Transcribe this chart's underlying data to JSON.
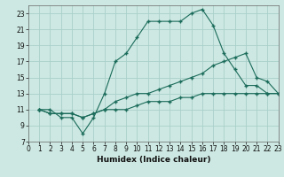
{
  "xlabel": "Humidex (Indice chaleur)",
  "bg_color": "#cde8e2",
  "grid_color": "#aacfca",
  "line_color": "#1a6b5a",
  "line1_x": [
    1,
    2,
    3,
    4,
    5,
    6,
    7,
    8,
    9,
    10,
    11,
    12,
    13,
    14,
    15,
    16,
    17,
    18,
    19,
    20,
    21,
    22,
    23
  ],
  "line1_y": [
    11,
    11,
    10,
    10,
    8,
    10,
    13,
    17,
    18,
    20,
    22,
    22,
    22,
    22,
    23,
    23.5,
    21.5,
    18,
    16,
    14,
    14,
    13,
    13
  ],
  "line2_x": [
    1,
    2,
    3,
    4,
    5,
    6,
    7,
    8,
    9,
    10,
    11,
    12,
    13,
    14,
    15,
    16,
    17,
    18,
    19,
    20,
    21,
    22,
    23
  ],
  "line2_y": [
    11,
    10.5,
    10.5,
    10.5,
    10,
    10.5,
    11,
    12,
    12.5,
    13,
    13,
    13.5,
    14,
    14.5,
    15,
    15.5,
    16.5,
    17,
    17.5,
    18,
    15,
    14.5,
    13
  ],
  "line3_x": [
    1,
    2,
    3,
    4,
    5,
    6,
    7,
    8,
    9,
    10,
    11,
    12,
    13,
    14,
    15,
    16,
    17,
    18,
    19,
    20,
    21,
    22,
    23
  ],
  "line3_y": [
    11,
    10.5,
    10.5,
    10.5,
    10,
    10.5,
    11,
    11,
    11,
    11.5,
    12,
    12,
    12,
    12.5,
    12.5,
    13,
    13,
    13,
    13,
    13,
    13,
    13,
    13
  ],
  "xlim": [
    0,
    23
  ],
  "ylim": [
    7,
    24
  ],
  "yticks": [
    7,
    9,
    11,
    13,
    15,
    17,
    19,
    21,
    23
  ],
  "xticks": [
    0,
    1,
    2,
    3,
    4,
    5,
    6,
    7,
    8,
    9,
    10,
    11,
    12,
    13,
    14,
    15,
    16,
    17,
    18,
    19,
    20,
    21,
    22,
    23
  ],
  "tick_fontsize": 5.5,
  "xlabel_fontsize": 6.5
}
